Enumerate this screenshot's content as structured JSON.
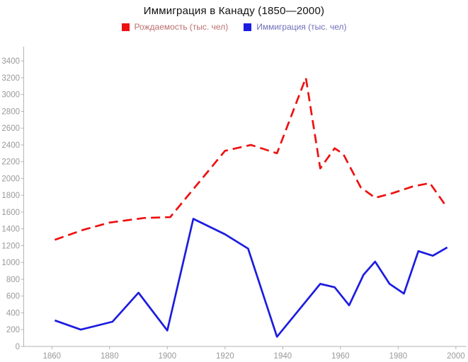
{
  "chart_data": {
    "type": "line",
    "title": "Иммиграция в Канаду (1850—2000)",
    "xlabel": "",
    "ylabel": "",
    "xlim": [
      1850,
      2004
    ],
    "ylim": [
      0,
      3570
    ],
    "grid": false,
    "legend_position": "top",
    "x_ticks": [
      1860,
      1880,
      1900,
      1920,
      1940,
      1960,
      1980,
      2000
    ],
    "y_ticks": [
      0,
      200,
      400,
      600,
      800,
      1000,
      1200,
      1400,
      1600,
      1800,
      2000,
      2200,
      2400,
      2600,
      2800,
      3000,
      3200,
      3400
    ],
    "series": [
      {
        "name": "Рождаемость (тыс. чел)",
        "color": "#ee1111",
        "label_color": "#bb6f6f",
        "style": "dashed",
        "x": [
          1861,
          1871,
          1880,
          1892,
          1901,
          1920,
          1929,
          1938,
          1948,
          1953,
          1958,
          1961,
          1967,
          1972,
          1978,
          1985,
          1991,
          1996
        ],
        "values": [
          1270,
          1390,
          1475,
          1530,
          1540,
          2330,
          2400,
          2300,
          3200,
          2120,
          2360,
          2290,
          1895,
          1770,
          1825,
          1905,
          1945,
          1700
        ]
      },
      {
        "name": "Иммиграция (тыс. чел)",
        "color": "#1c1ce0",
        "label_color": "#6f6fbb",
        "style": "solid",
        "x": [
          1861,
          1870,
          1881,
          1890,
          1900,
          1909,
          1920,
          1928,
          1938,
          1953,
          1958,
          1963,
          1968,
          1972,
          1977,
          1982,
          1987,
          1992,
          1997
        ],
        "values": [
          310,
          200,
          295,
          640,
          190,
          1520,
          1335,
          1165,
          115,
          745,
          705,
          490,
          855,
          1010,
          745,
          630,
          1135,
          1080,
          1180
        ]
      }
    ]
  },
  "colors": {
    "axis_line": "#b3b3b3",
    "tick_label": "#999999",
    "title": "#111111",
    "background": "#ffffff"
  }
}
